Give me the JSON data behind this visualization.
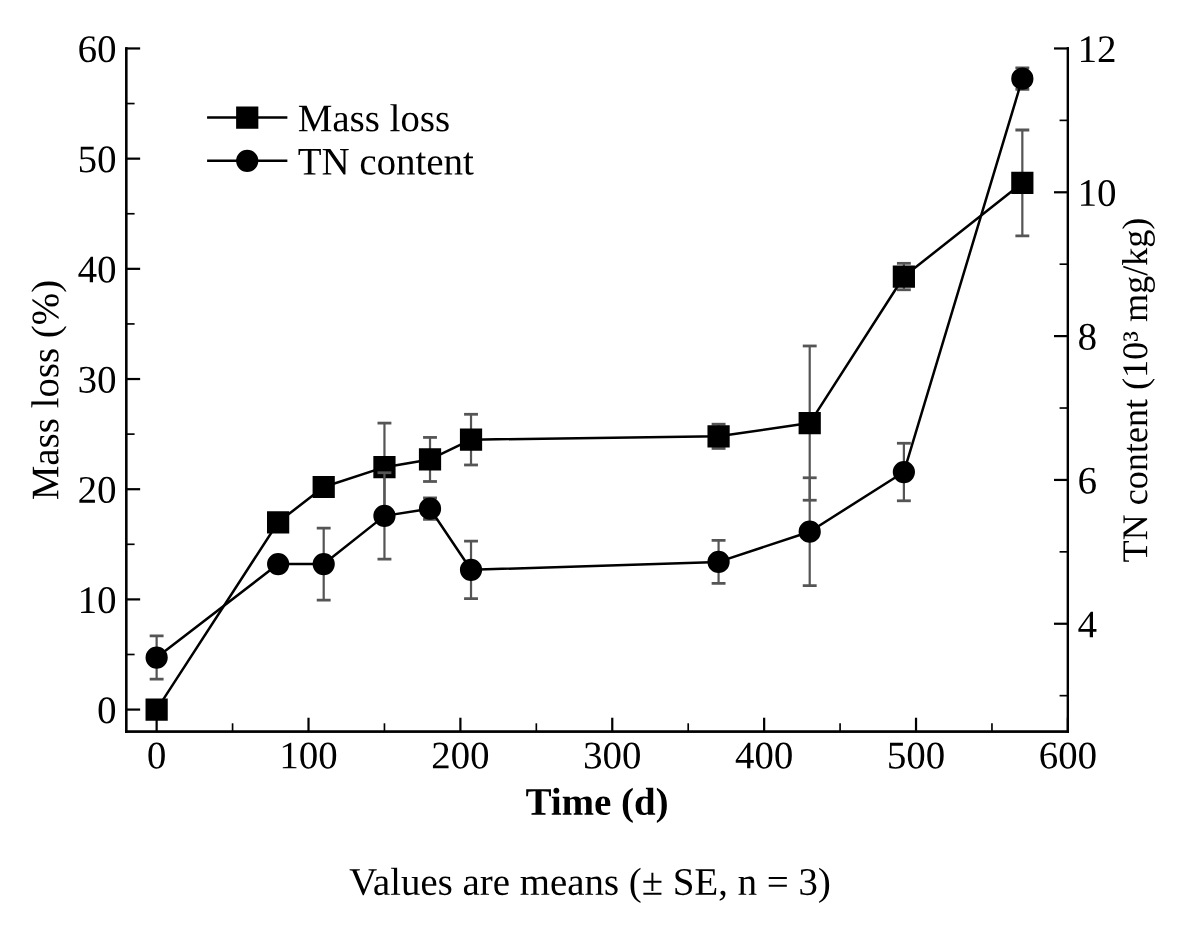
{
  "chart_data": {
    "type": "line",
    "xlabel": "Time (d)",
    "ylabel": "Mass loss (%)",
    "y2label": "TN content (10³ mg/kg)",
    "annotations": [
      "Values are means (± SE, n = 3)"
    ],
    "xlim": [
      -20,
      600
    ],
    "xticks": [
      0,
      100,
      200,
      300,
      400,
      500,
      600
    ],
    "ylim": [
      -2,
      60
    ],
    "yticks": [
      0,
      10,
      20,
      30,
      40,
      50,
      60
    ],
    "y2lim": [
      2.5,
      12
    ],
    "y2ticks": [
      4,
      6,
      8,
      10,
      12
    ],
    "legend": "top left",
    "grid": false,
    "series": [
      {
        "name": "Mass loss",
        "color": "#000000",
        "marker": "square",
        "x": [
          0,
          80,
          110,
          150,
          180,
          207,
          370,
          430,
          492,
          570
        ],
        "values": [
          0,
          17,
          20.2,
          22,
          22.7,
          24.5,
          24.8,
          26,
          39.3,
          47.8
        ],
        "errors": [
          null,
          null,
          0.5,
          4,
          2,
          2.3,
          1.1,
          7,
          1.2,
          4.8
        ]
      },
      {
        "name": "TN content",
        "color": "#000000",
        "marker": "circle",
        "axis": "y2",
        "x": [
          0,
          80,
          110,
          150,
          180,
          207,
          370,
          430,
          492,
          570
        ],
        "values": [
          3.53,
          4.83,
          4.83,
          5.5,
          5.6,
          4.75,
          4.86,
          5.28,
          6.11,
          11.58
        ],
        "errors": [
          0.3,
          null,
          0.5,
          0.6,
          0.15,
          0.4,
          0.3,
          0.75,
          0.4,
          0.15
        ]
      }
    ]
  }
}
